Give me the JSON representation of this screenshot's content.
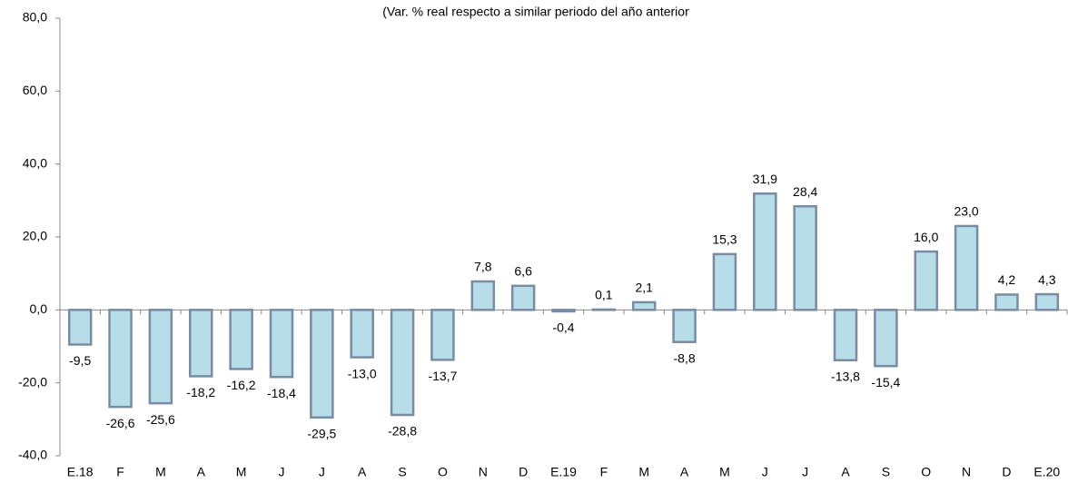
{
  "chart_data": {
    "type": "bar",
    "title": "(Var. % real respecto a similar periodo del año anterior",
    "categories": [
      "E.18",
      "F",
      "M",
      "A",
      "M",
      "J",
      "J",
      "A",
      "S",
      "O",
      "N",
      "D",
      "E.19",
      "F",
      "M",
      "A",
      "M",
      "J",
      "J",
      "A",
      "S",
      "O",
      "N",
      "D",
      "E.20"
    ],
    "values": [
      -9.5,
      -26.6,
      -25.6,
      -18.2,
      -16.2,
      -18.4,
      -29.5,
      -13.0,
      -28.8,
      -13.7,
      7.8,
      6.6,
      -0.4,
      0.1,
      2.1,
      -8.8,
      15.3,
      31.9,
      28.4,
      -13.8,
      -15.4,
      16.0,
      23.0,
      4.2,
      4.3
    ],
    "value_labels": [
      "-9,5",
      "-26,6",
      "-25,6",
      "-18,2",
      "-16,2",
      "-18,4",
      "-29,5",
      "-13,0",
      "-28,8",
      "-13,7",
      "7,8",
      "6,6",
      "-0,4",
      "0,1",
      "2,1",
      "-8,8",
      "15,3",
      "31,9",
      "28,4",
      "-13,8",
      "-15,4",
      "16,0",
      "23,0",
      "4,2",
      "4,3"
    ],
    "color": "#b7dde8",
    "ylim": [
      -40,
      80
    ],
    "yticks": [
      {
        "value": -40,
        "label": "-40,0"
      },
      {
        "value": -20,
        "label": "-20,0"
      },
      {
        "value": 0,
        "label": "0,0"
      },
      {
        "value": 20,
        "label": "20,0"
      },
      {
        "value": 40,
        "label": "40,0"
      },
      {
        "value": 60,
        "label": "60,0"
      },
      {
        "value": 80,
        "label": "80,0"
      }
    ],
    "grid": false
  }
}
